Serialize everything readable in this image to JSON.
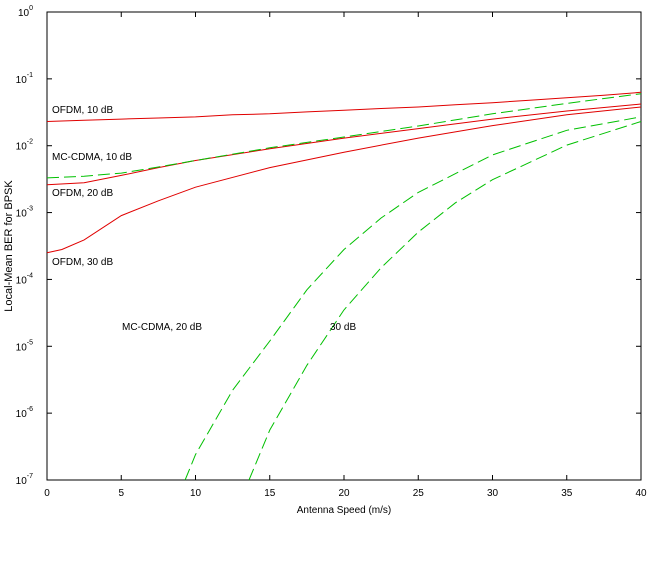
{
  "chart_data": {
    "type": "line",
    "xlabel": "Antenna Speed (m/s)",
    "ylabel": "Local-Mean BER for BPSK",
    "log_y": true,
    "grid": false,
    "xlim": [
      0,
      40
    ],
    "ylim": [
      1e-07,
      1
    ],
    "xticks": [
      0,
      5,
      10,
      15,
      20,
      25,
      30,
      35,
      40
    ],
    "yticks": [
      {
        "value": 1,
        "label": "10",
        "sup": "0"
      },
      {
        "value": 0.1,
        "label": "10",
        "sup": "-1"
      },
      {
        "value": 0.01,
        "label": "10",
        "sup": "-2"
      },
      {
        "value": 0.001,
        "label": "10",
        "sup": "-3"
      },
      {
        "value": 0.0001,
        "label": "10",
        "sup": "-4"
      },
      {
        "value": 1e-05,
        "label": "10",
        "sup": "-5"
      },
      {
        "value": 1e-06,
        "label": "10",
        "sup": "-6"
      },
      {
        "value": 1e-07,
        "label": "10",
        "sup": "-7"
      }
    ],
    "annotations": [
      "OFDM, 10 dB",
      "MC-CDMA, 10 dB",
      "OFDM, 20 dB",
      "OFDM, 30 dB",
      "MC-CDMA, 20 dB",
      "30 dB"
    ],
    "series": [
      {
        "color": "#e00000",
        "dash": false,
        "x": [
          0,
          2.5,
          5,
          7.5,
          10,
          12.5,
          15,
          17.5,
          20,
          22.5,
          25,
          27.5,
          30,
          32.5,
          35,
          37.5,
          40
        ],
        "values": [
          0.023,
          0.024,
          0.025,
          0.026,
          0.027,
          0.029,
          0.03,
          0.032,
          0.034,
          0.036,
          0.038,
          0.041,
          0.044,
          0.048,
          0.052,
          0.057,
          0.063
        ]
      },
      {
        "color": "#e00000",
        "dash": false,
        "x": [
          0,
          2.5,
          5,
          7.5,
          10,
          15,
          20,
          25,
          30,
          35,
          40
        ],
        "values": [
          0.0026,
          0.0028,
          0.0036,
          0.0047,
          0.006,
          0.009,
          0.013,
          0.018,
          0.025,
          0.033,
          0.042
        ]
      },
      {
        "color": "#e00000",
        "dash": false,
        "x": [
          0,
          1,
          2.5,
          5,
          7.5,
          10,
          15,
          20,
          25,
          30,
          35,
          40
        ],
        "values": [
          0.00025,
          0.00028,
          0.00039,
          0.0009,
          0.0015,
          0.0024,
          0.0047,
          0.008,
          0.013,
          0.02,
          0.029,
          0.038
        ]
      },
      {
        "color": "#00c000",
        "dash": true,
        "x": [
          0,
          2.5,
          5,
          7.5,
          10,
          15,
          20,
          25,
          30,
          35,
          40
        ],
        "values": [
          0.0033,
          0.0035,
          0.0039,
          0.0048,
          0.006,
          0.0093,
          0.0135,
          0.0197,
          0.03,
          0.043,
          0.06
        ]
      },
      {
        "color": "#00c000",
        "dash": true,
        "x": [
          9.3,
          10,
          12.5,
          15,
          17.5,
          20,
          22.5,
          25,
          30,
          35,
          40
        ],
        "values": [
          1e-07,
          2.4e-07,
          2.2e-06,
          1.2e-05,
          7e-05,
          0.00028,
          0.00083,
          0.002,
          0.0073,
          0.017,
          0.027
        ]
      },
      {
        "color": "#00c000",
        "dash": true,
        "x": [
          13.6,
          15,
          17.5,
          20,
          22.5,
          25,
          27.5,
          30,
          35,
          40
        ],
        "values": [
          1e-07,
          5.6e-07,
          5.2e-06,
          3.5e-05,
          0.00015,
          0.00051,
          0.0014,
          0.0031,
          0.0102,
          0.023
        ]
      }
    ]
  }
}
